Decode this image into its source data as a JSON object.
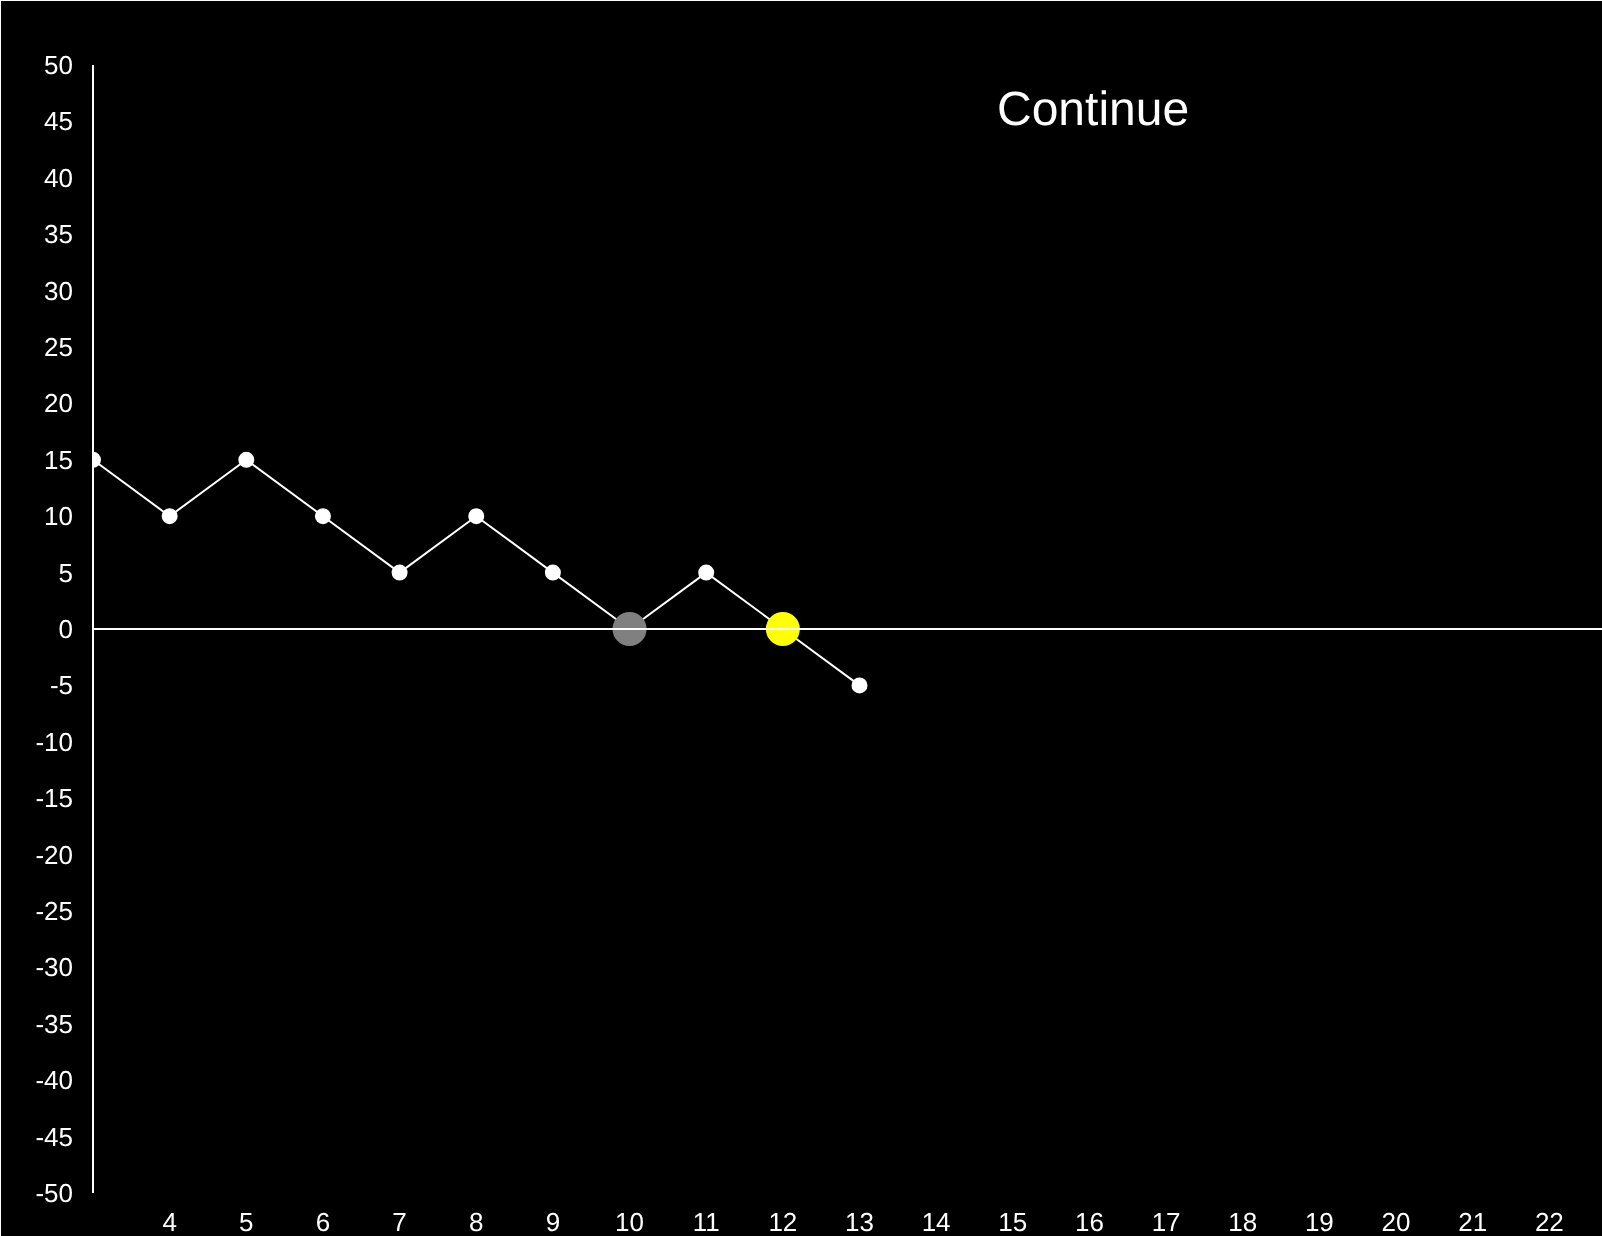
{
  "chart_data": {
    "type": "line",
    "x": [
      3,
      4,
      5,
      6,
      7,
      8,
      9,
      10,
      11,
      12,
      13
    ],
    "series": [
      {
        "color": "#ffffff",
        "values": [
          15,
          10,
          15,
          10,
          5,
          10,
          5,
          0,
          5,
          0,
          -5
        ],
        "colors": [
          "#ffffff",
          "#ffffff",
          "#ffffff",
          "#ffffff",
          "#ffffff",
          "#ffffff",
          "#ffffff",
          "#808080",
          "#ffffff",
          "#ffff00",
          "#ffffff"
        ]
      }
    ],
    "xlim": [
      3,
      22.7
    ],
    "xticks": [
      4,
      5,
      6,
      7,
      8,
      9,
      10,
      11,
      12,
      13,
      14,
      15,
      16,
      17,
      18,
      19,
      20,
      21,
      22
    ],
    "ylim": [
      -50,
      50
    ],
    "yticks": [
      -50,
      -45,
      -40,
      -35,
      -30,
      -25,
      -20,
      -15,
      -10,
      -5,
      0,
      5,
      10,
      15,
      20,
      25,
      30,
      35,
      40,
      45,
      50
    ],
    "ref_lines": [
      {
        "axis": "y",
        "value": 0,
        "color": "#ffffff"
      }
    ],
    "annotations": [
      "Continue"
    ],
    "marker": "circle"
  }
}
